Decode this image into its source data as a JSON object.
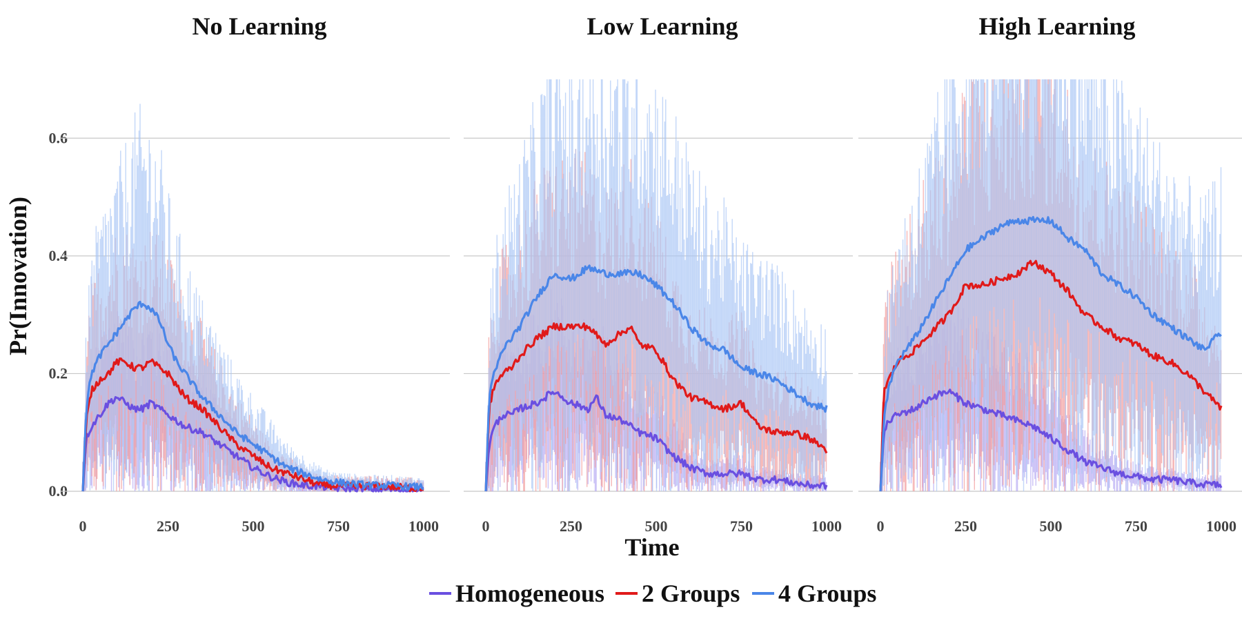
{
  "chart_data": {
    "type": "line",
    "panels": [
      {
        "title": "No Learning",
        "series": [
          {
            "name": "Homogeneous",
            "x": [
              0,
              10,
              25,
              50,
              75,
              100,
              125,
              150,
              175,
              200,
              225,
              250,
              275,
              300,
              350,
              400,
              450,
              500,
              550,
              600,
              650,
              700,
              750,
              800,
              850,
              900,
              950,
              1000
            ],
            "y": [
              0,
              0.09,
              0.11,
              0.13,
              0.15,
              0.16,
              0.15,
              0.14,
              0.14,
              0.15,
              0.14,
              0.13,
              0.12,
              0.11,
              0.1,
              0.08,
              0.06,
              0.04,
              0.025,
              0.015,
              0.01,
              0.008,
              0.005,
              0.005,
              0.003,
              0.003,
              0.002,
              0.002
            ]
          },
          {
            "name": "2 Groups",
            "x": [
              0,
              10,
              25,
              50,
              75,
              100,
              125,
              150,
              175,
              200,
              225,
              250,
              275,
              300,
              350,
              400,
              450,
              500,
              550,
              600,
              650,
              700,
              750,
              800,
              850,
              900,
              950,
              1000
            ],
            "y": [
              0,
              0.12,
              0.17,
              0.19,
              0.2,
              0.22,
              0.22,
              0.21,
              0.21,
              0.22,
              0.21,
              0.2,
              0.18,
              0.16,
              0.14,
              0.11,
              0.08,
              0.06,
              0.04,
              0.03,
              0.02,
              0.01,
              0.01,
              0.008,
              0.01,
              0.008,
              0.006,
              0.005
            ]
          },
          {
            "name": "4 Groups",
            "x": [
              0,
              10,
              25,
              50,
              75,
              100,
              125,
              150,
              175,
              200,
              225,
              250,
              275,
              300,
              350,
              400,
              450,
              500,
              550,
              600,
              650,
              700,
              750,
              800,
              850,
              900,
              950,
              1000
            ],
            "y": [
              0,
              0.14,
              0.2,
              0.23,
              0.25,
              0.27,
              0.29,
              0.31,
              0.32,
              0.31,
              0.29,
              0.25,
              0.22,
              0.2,
              0.16,
              0.13,
              0.1,
              0.08,
              0.06,
              0.04,
              0.03,
              0.02,
              0.015,
              0.012,
              0.01,
              0.01,
              0.008,
              0.007
            ]
          }
        ]
      },
      {
        "title": "Low Learning",
        "series": [
          {
            "name": "Homogeneous",
            "x": [
              0,
              10,
              25,
              50,
              75,
              100,
              150,
              200,
              250,
              300,
              325,
              350,
              400,
              450,
              500,
              550,
              600,
              650,
              700,
              750,
              800,
              850,
              900,
              950,
              1000
            ],
            "y": [
              0,
              0.08,
              0.11,
              0.13,
              0.13,
              0.14,
              0.15,
              0.17,
              0.15,
              0.14,
              0.16,
              0.13,
              0.12,
              0.1,
              0.09,
              0.06,
              0.04,
              0.03,
              0.03,
              0.03,
              0.02,
              0.02,
              0.015,
              0.01,
              0.01
            ]
          },
          {
            "name": "2 Groups",
            "x": [
              0,
              10,
              25,
              50,
              75,
              100,
              150,
              200,
              250,
              300,
              350,
              400,
              425,
              450,
              500,
              550,
              600,
              650,
              700,
              750,
              800,
              850,
              900,
              950,
              1000
            ],
            "y": [
              0,
              0.14,
              0.18,
              0.2,
              0.21,
              0.23,
              0.26,
              0.28,
              0.28,
              0.28,
              0.25,
              0.27,
              0.28,
              0.25,
              0.24,
              0.19,
              0.16,
              0.15,
              0.14,
              0.15,
              0.11,
              0.1,
              0.1,
              0.09,
              0.07
            ]
          },
          {
            "name": "4 Groups",
            "x": [
              0,
              10,
              25,
              50,
              75,
              100,
              150,
              200,
              250,
              300,
              350,
              400,
              450,
              500,
              550,
              600,
              650,
              700,
              750,
              800,
              850,
              900,
              950,
              1000
            ],
            "y": [
              0,
              0.16,
              0.2,
              0.24,
              0.26,
              0.28,
              0.33,
              0.37,
              0.36,
              0.38,
              0.37,
              0.37,
              0.37,
              0.35,
              0.32,
              0.28,
              0.25,
              0.24,
              0.21,
              0.2,
              0.19,
              0.17,
              0.15,
              0.14
            ]
          }
        ]
      },
      {
        "title": "High Learning",
        "series": [
          {
            "name": "Homogeneous",
            "x": [
              0,
              10,
              25,
              50,
              100,
              150,
              200,
              250,
              300,
              350,
              400,
              450,
              500,
              550,
              600,
              650,
              700,
              750,
              800,
              850,
              900,
              950,
              1000
            ],
            "y": [
              0,
              0.1,
              0.12,
              0.13,
              0.14,
              0.16,
              0.17,
              0.15,
              0.14,
              0.13,
              0.12,
              0.11,
              0.09,
              0.07,
              0.05,
              0.04,
              0.03,
              0.025,
              0.02,
              0.02,
              0.015,
              0.012,
              0.01
            ]
          },
          {
            "name": "2 Groups",
            "x": [
              0,
              10,
              25,
              50,
              100,
              150,
              200,
              250,
              300,
              350,
              400,
              450,
              500,
              550,
              600,
              650,
              700,
              750,
              800,
              850,
              900,
              950,
              1000
            ],
            "y": [
              0,
              0.17,
              0.19,
              0.22,
              0.24,
              0.27,
              0.3,
              0.35,
              0.35,
              0.36,
              0.37,
              0.39,
              0.37,
              0.34,
              0.3,
              0.28,
              0.26,
              0.25,
              0.23,
              0.22,
              0.2,
              0.17,
              0.14
            ]
          },
          {
            "name": "4 Groups",
            "x": [
              0,
              10,
              25,
              50,
              100,
              150,
              200,
              250,
              300,
              350,
              400,
              450,
              500,
              550,
              600,
              650,
              700,
              750,
              800,
              850,
              900,
              950,
              1000
            ],
            "y": [
              0,
              0.12,
              0.18,
              0.22,
              0.26,
              0.31,
              0.36,
              0.41,
              0.43,
              0.45,
              0.46,
              0.46,
              0.46,
              0.43,
              0.41,
              0.37,
              0.35,
              0.33,
              0.3,
              0.28,
              0.26,
              0.24,
              0.27
            ]
          }
        ]
      }
    ],
    "xlabel": "Time",
    "ylabel": "Pr(Innovation)",
    "xlim": [
      0,
      1000
    ],
    "ylim": [
      0,
      0.7
    ],
    "xticks": [
      0,
      250,
      500,
      750,
      1000
    ],
    "xtick_labels": [
      "0",
      "250",
      "500",
      "750",
      "1000"
    ],
    "yticks": [
      0,
      0.2,
      0.4,
      0.6
    ],
    "ytick_labels": [
      "0.0",
      "0.2",
      "0.4",
      "0.6"
    ],
    "grid": true,
    "legend": {
      "placement": "bottom",
      "entries": [
        "Homogeneous",
        "2 Groups",
        "4 Groups"
      ]
    },
    "colors": {
      "Homogeneous": "#6a4fe0",
      "2 Groups": "#e01a1a",
      "4 Groups": "#4a86e8"
    }
  }
}
